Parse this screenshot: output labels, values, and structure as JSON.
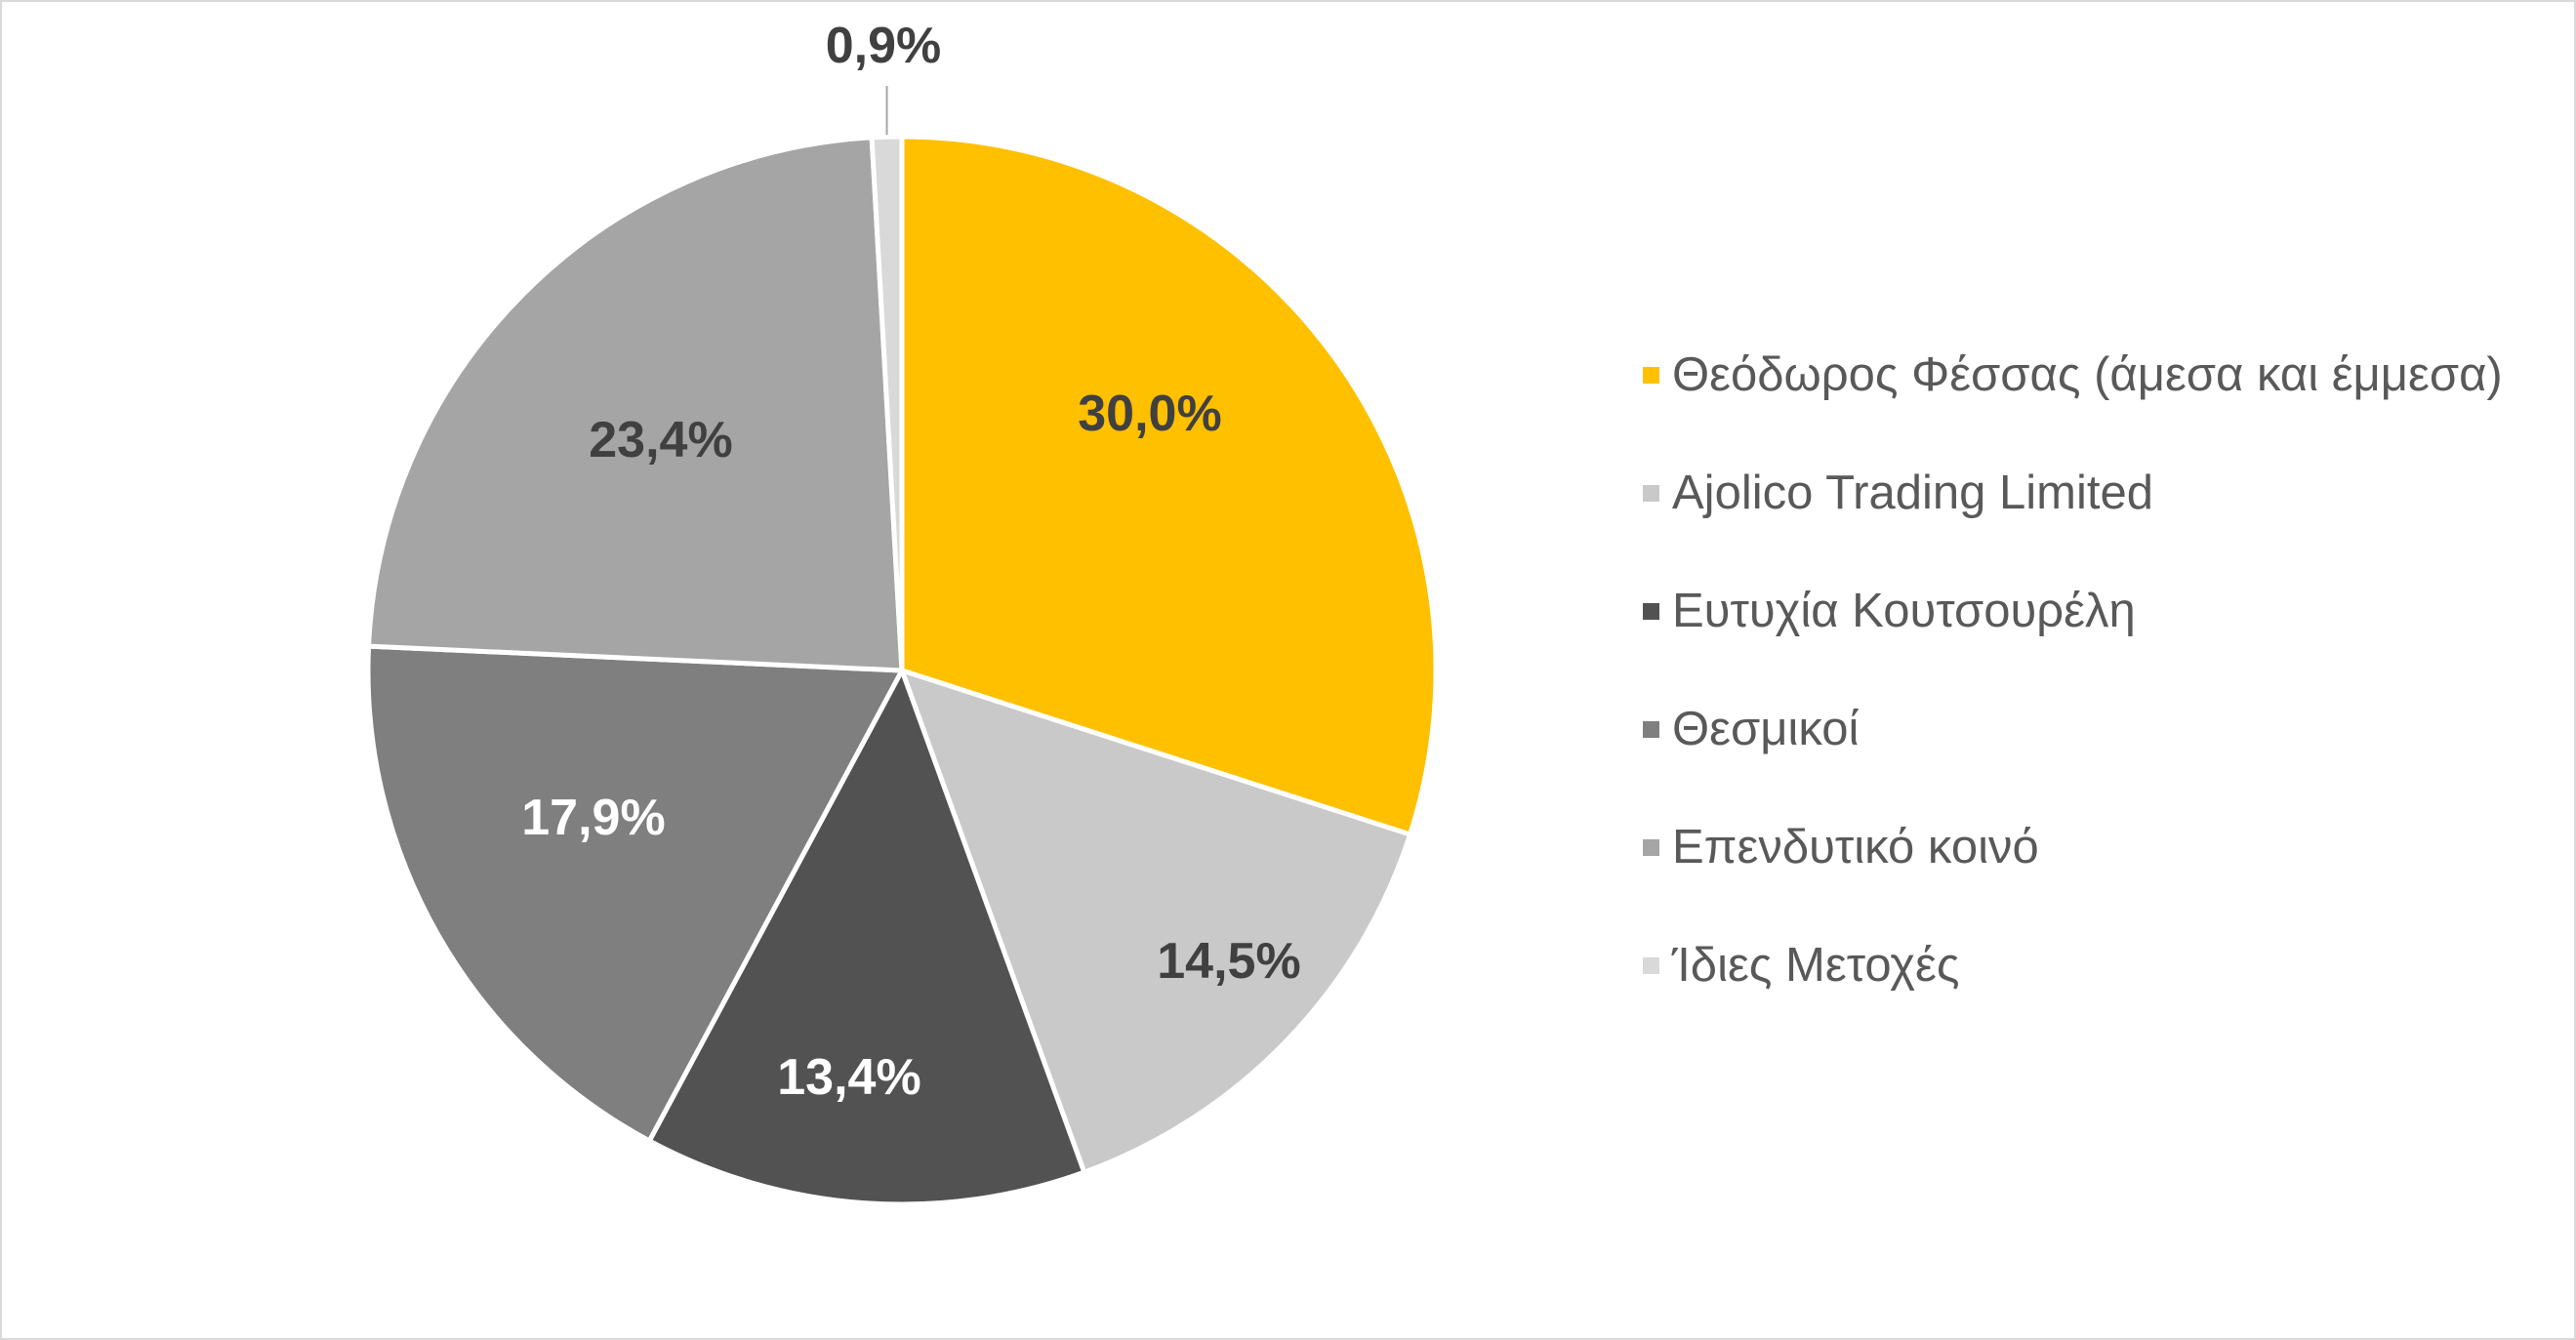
{
  "chart_data": {
    "type": "pie",
    "categories": [
      "Θεόδωρος Φέσσας (άμεσα και έμμεσα)",
      "Ajolico Trading Limited",
      "Ευτυχία Κουτσουρέλη",
      "Θεσμικοί",
      "Επενδυτικό κοινό",
      "Ίδιες Μετοχές"
    ],
    "values": [
      30.0,
      14.5,
      13.4,
      17.9,
      23.4,
      0.9
    ],
    "data_labels": [
      "30,0%",
      "14,5%",
      "13,4%",
      "17,9%",
      "23,4%",
      "0,9%"
    ],
    "colors": [
      "#FFC000",
      "#C9C9C9",
      "#525252",
      "#7F7F7F",
      "#A5A5A5",
      "#D9D9D9"
    ],
    "label_colors": [
      "#404040",
      "#404040",
      "#FFFFFF",
      "#FFFFFF",
      "#404040",
      "#404040"
    ],
    "legend_position": "right"
  }
}
